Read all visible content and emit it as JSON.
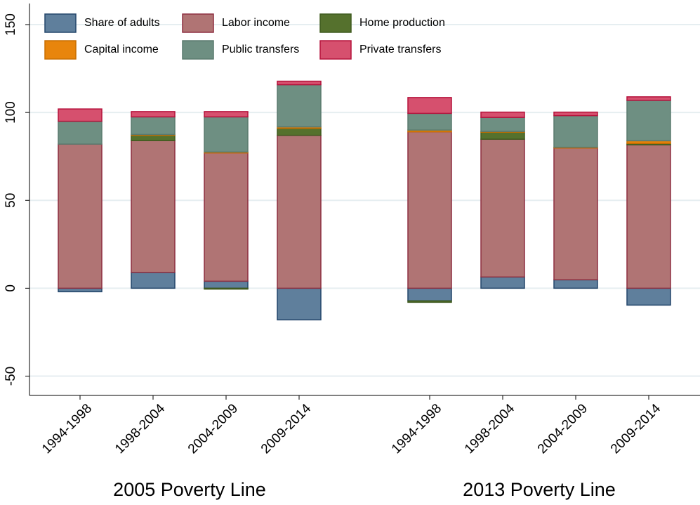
{
  "chart_data": {
    "type": "bar",
    "stacked": true,
    "categories": [
      "1994-1998",
      "1998-2004",
      "2004-2009",
      "2009-2014",
      "1994-1998",
      "1998-2004",
      "2004-2009",
      "2009-2014"
    ],
    "group_labels": [
      "2005 Poverty Line",
      "2013 Poverty Line"
    ],
    "series": [
      {
        "name": "Share of adults",
        "color": "#5f7f9c",
        "stroke": "#23466b",
        "values": [
          -2,
          9,
          4,
          -18,
          -7.2,
          6.4,
          4.8,
          -9.6
        ]
      },
      {
        "name": "Labor income",
        "color": "#b07474",
        "stroke": "#8e2f40",
        "values": [
          82,
          75,
          73,
          87,
          89,
          78.4,
          75,
          81.6
        ]
      },
      {
        "name": "Home production",
        "color": "#55712d",
        "stroke": "#3f5a1f",
        "values": [
          0,
          3,
          -0.5,
          4,
          -0.8,
          4,
          0,
          0.8
        ]
      },
      {
        "name": "Capital income",
        "color": "#e8850c",
        "stroke": "#c96e00",
        "values": [
          0,
          0.5,
          0.5,
          0.8,
          1,
          0.4,
          0.4,
          1.5
        ]
      },
      {
        "name": "Public transfers",
        "color": "#6e8f82",
        "stroke": "#5a7a6e",
        "values": [
          13,
          10,
          20,
          24,
          9.5,
          8,
          18,
          23
        ]
      },
      {
        "name": "Private transfers",
        "color": "#d6506e",
        "stroke": "#b5123c",
        "values": [
          7,
          3,
          3,
          2,
          9,
          3,
          2,
          2
        ]
      }
    ],
    "ylim": [
      -61,
      162
    ],
    "yticks": [
      -50,
      0,
      50,
      100,
      150
    ],
    "grid": true,
    "legend": "top-left"
  }
}
